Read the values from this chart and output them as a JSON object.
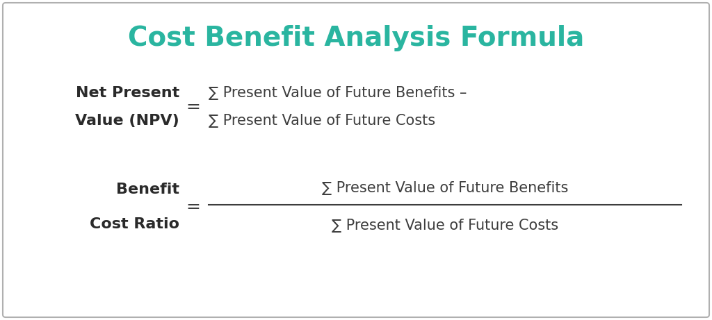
{
  "title": "Cost Benefit Analysis Formula",
  "title_color": "#2ab5a0",
  "title_fontsize": 28,
  "background_color": "#ffffff",
  "border_color": "#b0b0b0",
  "text_color": "#3d3d3d",
  "label_color": "#2a2a2a",
  "npv_label_line1": "Net Present",
  "npv_label_line2": "Value (NPV)",
  "npv_eq": "=",
  "npv_formula_line1": "∑ Present Value of Future Benefits –",
  "npv_formula_line2": "∑ Present Value of Future Costs",
  "bcr_label_line1": "Benefit",
  "bcr_label_line2": "Cost Ratio",
  "bcr_eq": "=",
  "bcr_num": "∑ Present Value of Future Benefits",
  "bcr_den": "∑ Present Value of Future Costs",
  "label_fontsize": 16,
  "formula_fontsize": 15,
  "eq_fontsize": 18
}
